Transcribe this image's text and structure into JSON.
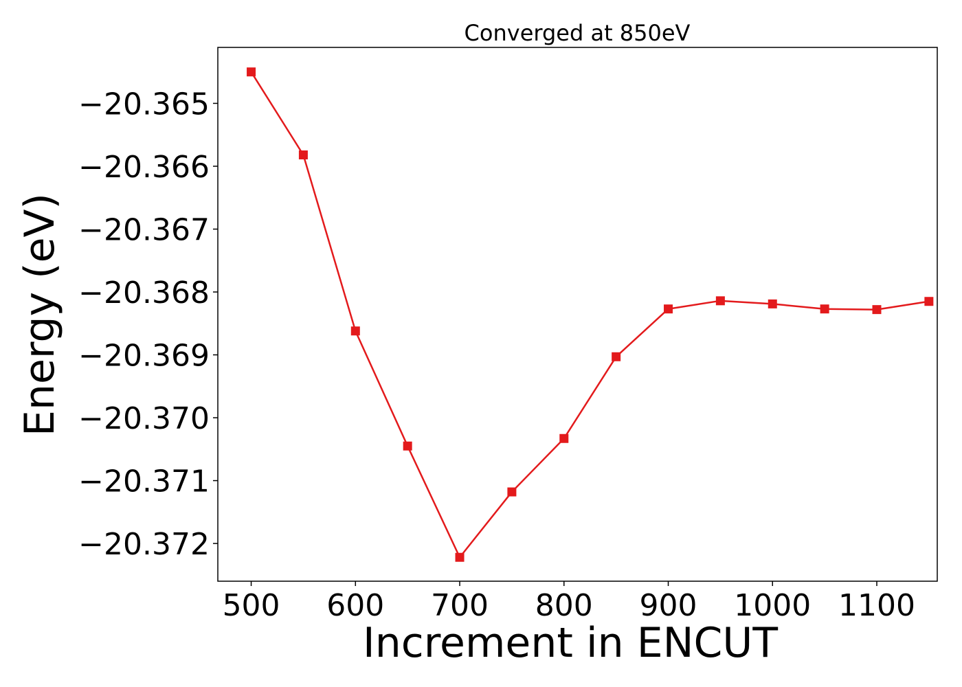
{
  "chart_data": {
    "type": "line",
    "title": "Converged at 850eV",
    "xlabel": "Increment in ENCUT",
    "ylabel": "Energy (eV)",
    "x": [
      500,
      550,
      600,
      650,
      700,
      750,
      800,
      850,
      900,
      950,
      1000,
      1050,
      1100,
      1150
    ],
    "series": [
      {
        "name": "",
        "color": "#e31a1c",
        "marker": "square",
        "values": [
          -20.3645,
          -20.36582,
          -20.36862,
          -20.37045,
          -20.37222,
          -20.37118,
          -20.37033,
          -20.36903,
          -20.36827,
          -20.36814,
          -20.36819,
          -20.36827,
          -20.36828,
          -20.36815
        ]
      }
    ],
    "xlim": [
      468,
      1158
    ],
    "ylim": [
      -20.3726,
      -20.36411
    ],
    "xticks": [
      500,
      600,
      700,
      800,
      900,
      1000,
      1100
    ],
    "xtick_labels": [
      "500",
      "600",
      "700",
      "800",
      "900",
      "1000",
      "1100"
    ],
    "yticks": [
      -20.365,
      -20.366,
      -20.367,
      -20.368,
      -20.369,
      -20.37,
      -20.371,
      -20.372
    ],
    "ytick_labels": [
      "−20.365",
      "−20.366",
      "−20.367",
      "−20.368",
      "−20.369",
      "−20.370",
      "−20.371",
      "−20.372"
    ],
    "grid": false,
    "legend": "none"
  }
}
